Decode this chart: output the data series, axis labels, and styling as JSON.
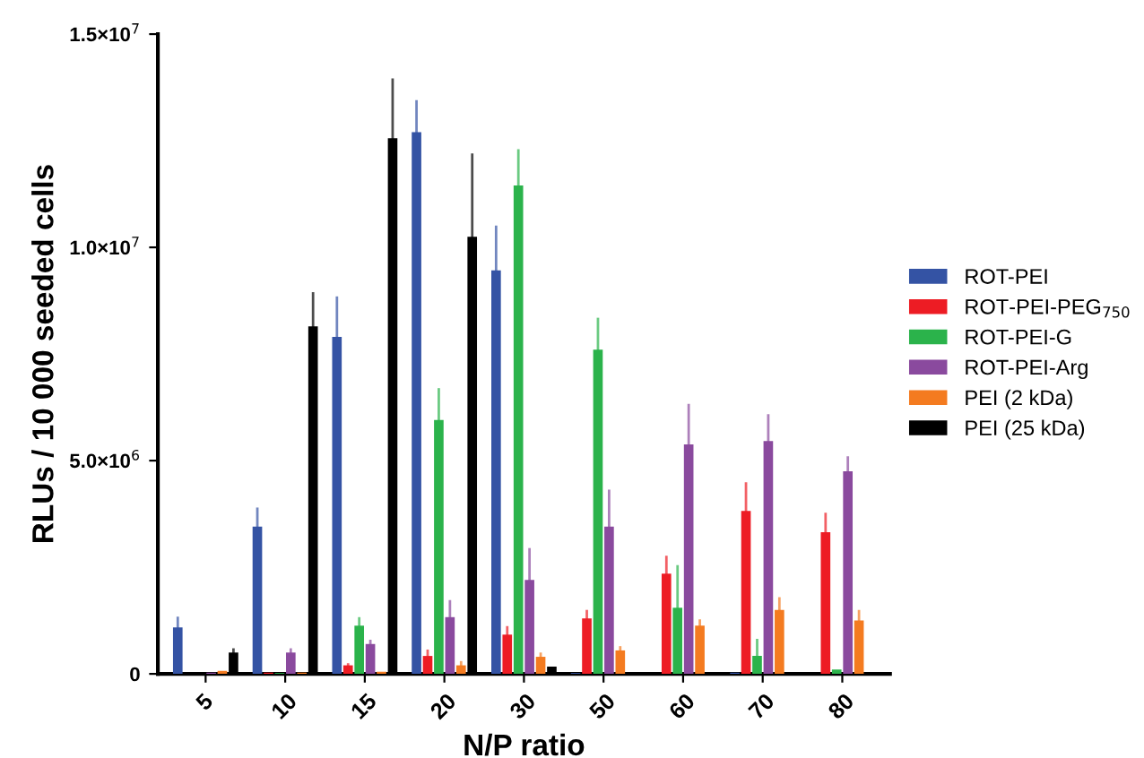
{
  "chart_data": {
    "type": "bar",
    "xlabel": "N/P ratio",
    "ylabel": "RLUs / 10 000 seeded cells",
    "categories": [
      "5",
      "10",
      "15",
      "20",
      "30",
      "50",
      "60",
      "70",
      "80"
    ],
    "series": [
      {
        "name": "ROT-PEI",
        "color": "#3453a4",
        "values": [
          1090000,
          3450000,
          7900000,
          12700000,
          9460000,
          20000,
          null,
          30000,
          0
        ],
        "errors": [
          250000,
          450000,
          950000,
          750000,
          1050000,
          null,
          null,
          null,
          null
        ]
      },
      {
        "name": "ROT-PEI-PEG$_{750}$",
        "color": "#ed1c24",
        "values": [
          0,
          30000,
          200000,
          420000,
          920000,
          1300000,
          2350000,
          3820000,
          3320000
        ],
        "errors": [
          null,
          null,
          50000,
          150000,
          200000,
          200000,
          420000,
          670000,
          460000
        ]
      },
      {
        "name": "ROT-PEI-G",
        "color": "#2bb34b",
        "values": [
          0,
          20000,
          1130000,
          5950000,
          11450000,
          7600000,
          1550000,
          420000,
          100000
        ],
        "errors": [
          null,
          null,
          200000,
          750000,
          850000,
          750000,
          1000000,
          400000,
          null
        ]
      },
      {
        "name": "ROT-PEI-Arg",
        "color": "#8a4a9e",
        "values": [
          30000,
          500000,
          700000,
          1330000,
          2200000,
          3450000,
          5380000,
          5460000,
          4750000
        ],
        "errors": [
          null,
          100000,
          100000,
          400000,
          750000,
          870000,
          950000,
          630000,
          350000
        ]
      },
      {
        "name": "PEI (2 kDa)",
        "color": "#f47b20",
        "values": [
          70000,
          30000,
          50000,
          200000,
          400000,
          550000,
          1130000,
          1500000,
          1250000
        ],
        "errors": [
          null,
          null,
          null,
          100000,
          100000,
          100000,
          150000,
          300000,
          250000
        ]
      },
      {
        "name": "PEI (25 kDa)",
        "color": "#000000",
        "values": [
          500000,
          8150000,
          12560000,
          10250000,
          170000,
          null,
          null,
          null,
          null
        ],
        "errors": [
          100000,
          800000,
          1400000,
          1950000,
          null,
          null,
          null,
          null,
          null
        ]
      }
    ],
    "ylim": [
      0,
      15000000
    ],
    "yticks": [
      {
        "value": 0,
        "label": "0"
      },
      {
        "value": 5000000,
        "label": "5.0×10$^{6}$"
      },
      {
        "value": 10000000,
        "label": "1.0×10$^{7}$"
      },
      {
        "value": 15000000,
        "label": "1.5×10$^{7}$"
      }
    ],
    "legend": "right"
  }
}
